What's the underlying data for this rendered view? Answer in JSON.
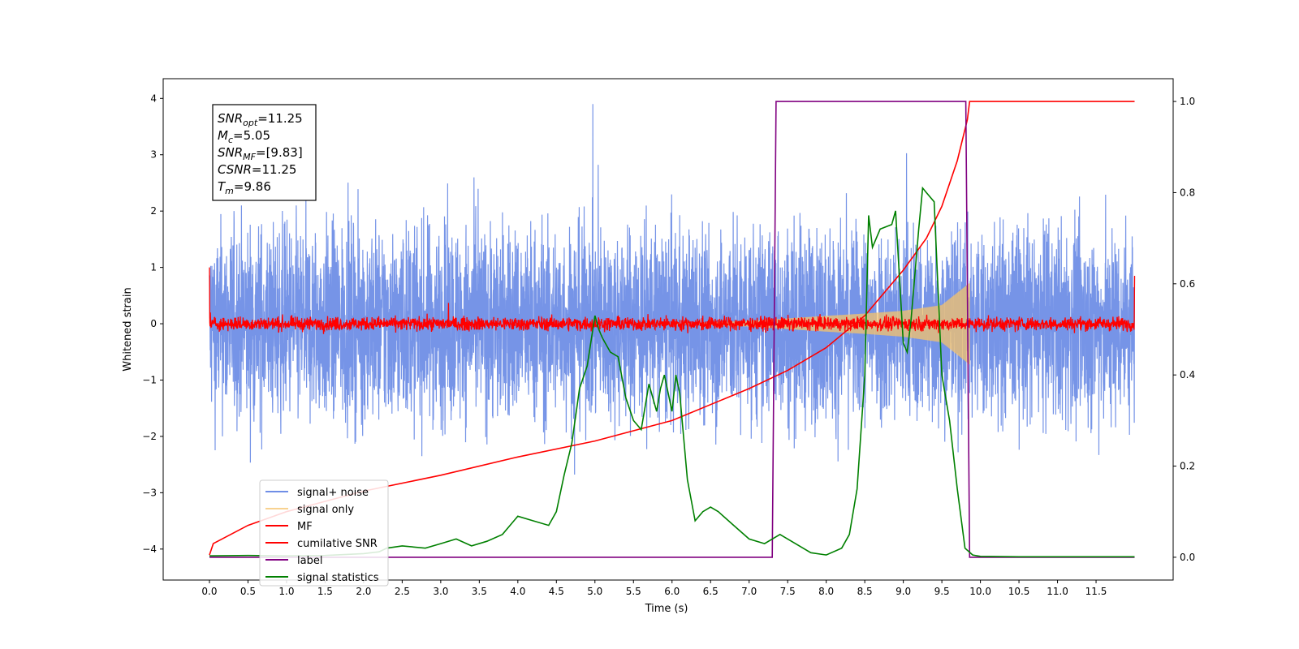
{
  "chart_data": {
    "type": "line",
    "xlabel": "Time (s)",
    "ylabel": "Whitened strain",
    "xlim": [
      -0.6,
      12.5
    ],
    "ylim": [
      -4.55,
      4.35
    ],
    "y2lim": [
      -0.05,
      1.05
    ],
    "x_ticks": [
      0.0,
      0.5,
      1.0,
      1.5,
      2.0,
      2.5,
      3.0,
      3.5,
      4.0,
      4.5,
      5.0,
      5.5,
      6.0,
      6.5,
      7.0,
      7.5,
      8.0,
      8.5,
      9.0,
      9.5,
      10.0,
      10.5,
      11.0,
      11.5
    ],
    "x_tick_labels": [
      "0.0",
      "0.5",
      "1.0",
      "1.5",
      "2.0",
      "2.5",
      "3.0",
      "3.5",
      "4.0",
      "4.5",
      "5.0",
      "5.5",
      "6.0",
      "6.5",
      "7.0",
      "7.5",
      "8.0",
      "8.5",
      "9.0",
      "9.5",
      "10.0",
      "10.5",
      "11.0",
      "11.5"
    ],
    "y_ticks": [
      -4,
      -3,
      -2,
      -1,
      0,
      1,
      2,
      3,
      4
    ],
    "y_tick_labels": [
      "−4",
      "−3",
      "−2",
      "−1",
      "0",
      "1",
      "2",
      "3",
      "4"
    ],
    "y2_ticks": [
      0.0,
      0.2,
      0.4,
      0.6,
      0.8,
      1.0
    ],
    "y2_tick_labels": [
      "0.0",
      "0.2",
      "0.4",
      "0.6",
      "0.8",
      "1.0"
    ],
    "legend_position": "lower-left",
    "annotation_lines": [
      {
        "base": "SNR",
        "sub": "opt",
        "rest": "=11.25"
      },
      {
        "base": "M",
        "sub": "c",
        "rest": "=5.05"
      },
      {
        "base": "SNR",
        "sub": "MF",
        "rest": "=[9.83]"
      },
      {
        "base": "CSNR",
        "sub": "",
        "rest": "=11.25"
      },
      {
        "base": "T",
        "sub": "m",
        "rest": "=9.86"
      }
    ],
    "series": [
      {
        "name": "signal+ noise",
        "color": "#6f8ee6",
        "axis": "left",
        "kind": "noise",
        "x_range": [
          0.0,
          12.0
        ],
        "rms": 0.85,
        "note_peak": 3.9
      },
      {
        "name": "signal only",
        "color": "#f5c36b",
        "axis": "left",
        "kind": "chirp",
        "x_range": [
          6.0,
          9.86
        ],
        "envelope": {
          "x": [
            6.0,
            7.0,
            8.0,
            8.5,
            9.0,
            9.5,
            9.86
          ],
          "amp": [
            0.0,
            0.05,
            0.14,
            0.18,
            0.23,
            0.33,
            0.72
          ]
        }
      },
      {
        "name": "MF",
        "color": "#ff0000",
        "axis": "left",
        "kind": "mf",
        "x_range": [
          0.0,
          12.0
        ],
        "spike_at": 3.1,
        "edge_values": [
          1.0,
          0.85
        ]
      },
      {
        "name": "cumilative SNR",
        "color": "#ff0000",
        "axis": "right",
        "x": [
          0.0,
          0.05,
          0.5,
          1.0,
          2.0,
          3.0,
          4.0,
          5.0,
          6.0,
          7.0,
          7.5,
          8.0,
          8.5,
          9.0,
          9.3,
          9.5,
          9.7,
          9.83,
          9.86,
          12.0
        ],
        "y": [
          0.005,
          0.03,
          0.07,
          0.1,
          0.145,
          0.18,
          0.22,
          0.255,
          0.3,
          0.37,
          0.41,
          0.46,
          0.53,
          0.63,
          0.7,
          0.77,
          0.87,
          0.96,
          1.0,
          1.0
        ]
      },
      {
        "name": "label",
        "color": "#800080",
        "axis": "right",
        "x": [
          0.0,
          7.3,
          7.35,
          9.81,
          9.86,
          12.0
        ],
        "y": [
          0.0,
          0.0,
          1.0,
          1.0,
          0.0,
          0.0
        ]
      },
      {
        "name": "signal statistics",
        "color": "#008000",
        "axis": "right",
        "x": [
          0.0,
          0.5,
          1.0,
          1.5,
          2.0,
          2.2,
          2.3,
          2.5,
          2.8,
          3.0,
          3.2,
          3.4,
          3.6,
          3.8,
          4.0,
          4.2,
          4.4,
          4.5,
          4.6,
          4.7,
          4.8,
          4.9,
          5.0,
          5.05,
          5.1,
          5.2,
          5.3,
          5.4,
          5.5,
          5.6,
          5.7,
          5.8,
          5.85,
          5.9,
          6.0,
          6.05,
          6.1,
          6.2,
          6.3,
          6.4,
          6.5,
          6.6,
          6.8,
          7.0,
          7.2,
          7.4,
          7.5,
          7.6,
          7.8,
          8.0,
          8.2,
          8.3,
          8.4,
          8.5,
          8.55,
          8.6,
          8.7,
          8.85,
          8.9,
          9.0,
          9.05,
          9.1,
          9.2,
          9.25,
          9.3,
          9.4,
          9.5,
          9.6,
          9.7,
          9.8,
          9.9,
          10.0,
          10.5,
          11.0,
          12.0
        ],
        "y": [
          0.003,
          0.004,
          0.003,
          0.004,
          0.008,
          0.012,
          0.02,
          0.025,
          0.02,
          0.03,
          0.04,
          0.025,
          0.035,
          0.05,
          0.09,
          0.08,
          0.07,
          0.1,
          0.18,
          0.25,
          0.37,
          0.42,
          0.53,
          0.5,
          0.48,
          0.45,
          0.44,
          0.35,
          0.3,
          0.28,
          0.38,
          0.32,
          0.37,
          0.4,
          0.32,
          0.4,
          0.36,
          0.17,
          0.08,
          0.1,
          0.11,
          0.1,
          0.07,
          0.04,
          0.03,
          0.05,
          0.04,
          0.03,
          0.01,
          0.005,
          0.02,
          0.05,
          0.15,
          0.4,
          0.75,
          0.68,
          0.72,
          0.73,
          0.76,
          0.47,
          0.45,
          0.52,
          0.72,
          0.81,
          0.8,
          0.78,
          0.4,
          0.3,
          0.15,
          0.02,
          0.005,
          0.002,
          0.001,
          0.001,
          0.001
        ]
      }
    ]
  }
}
